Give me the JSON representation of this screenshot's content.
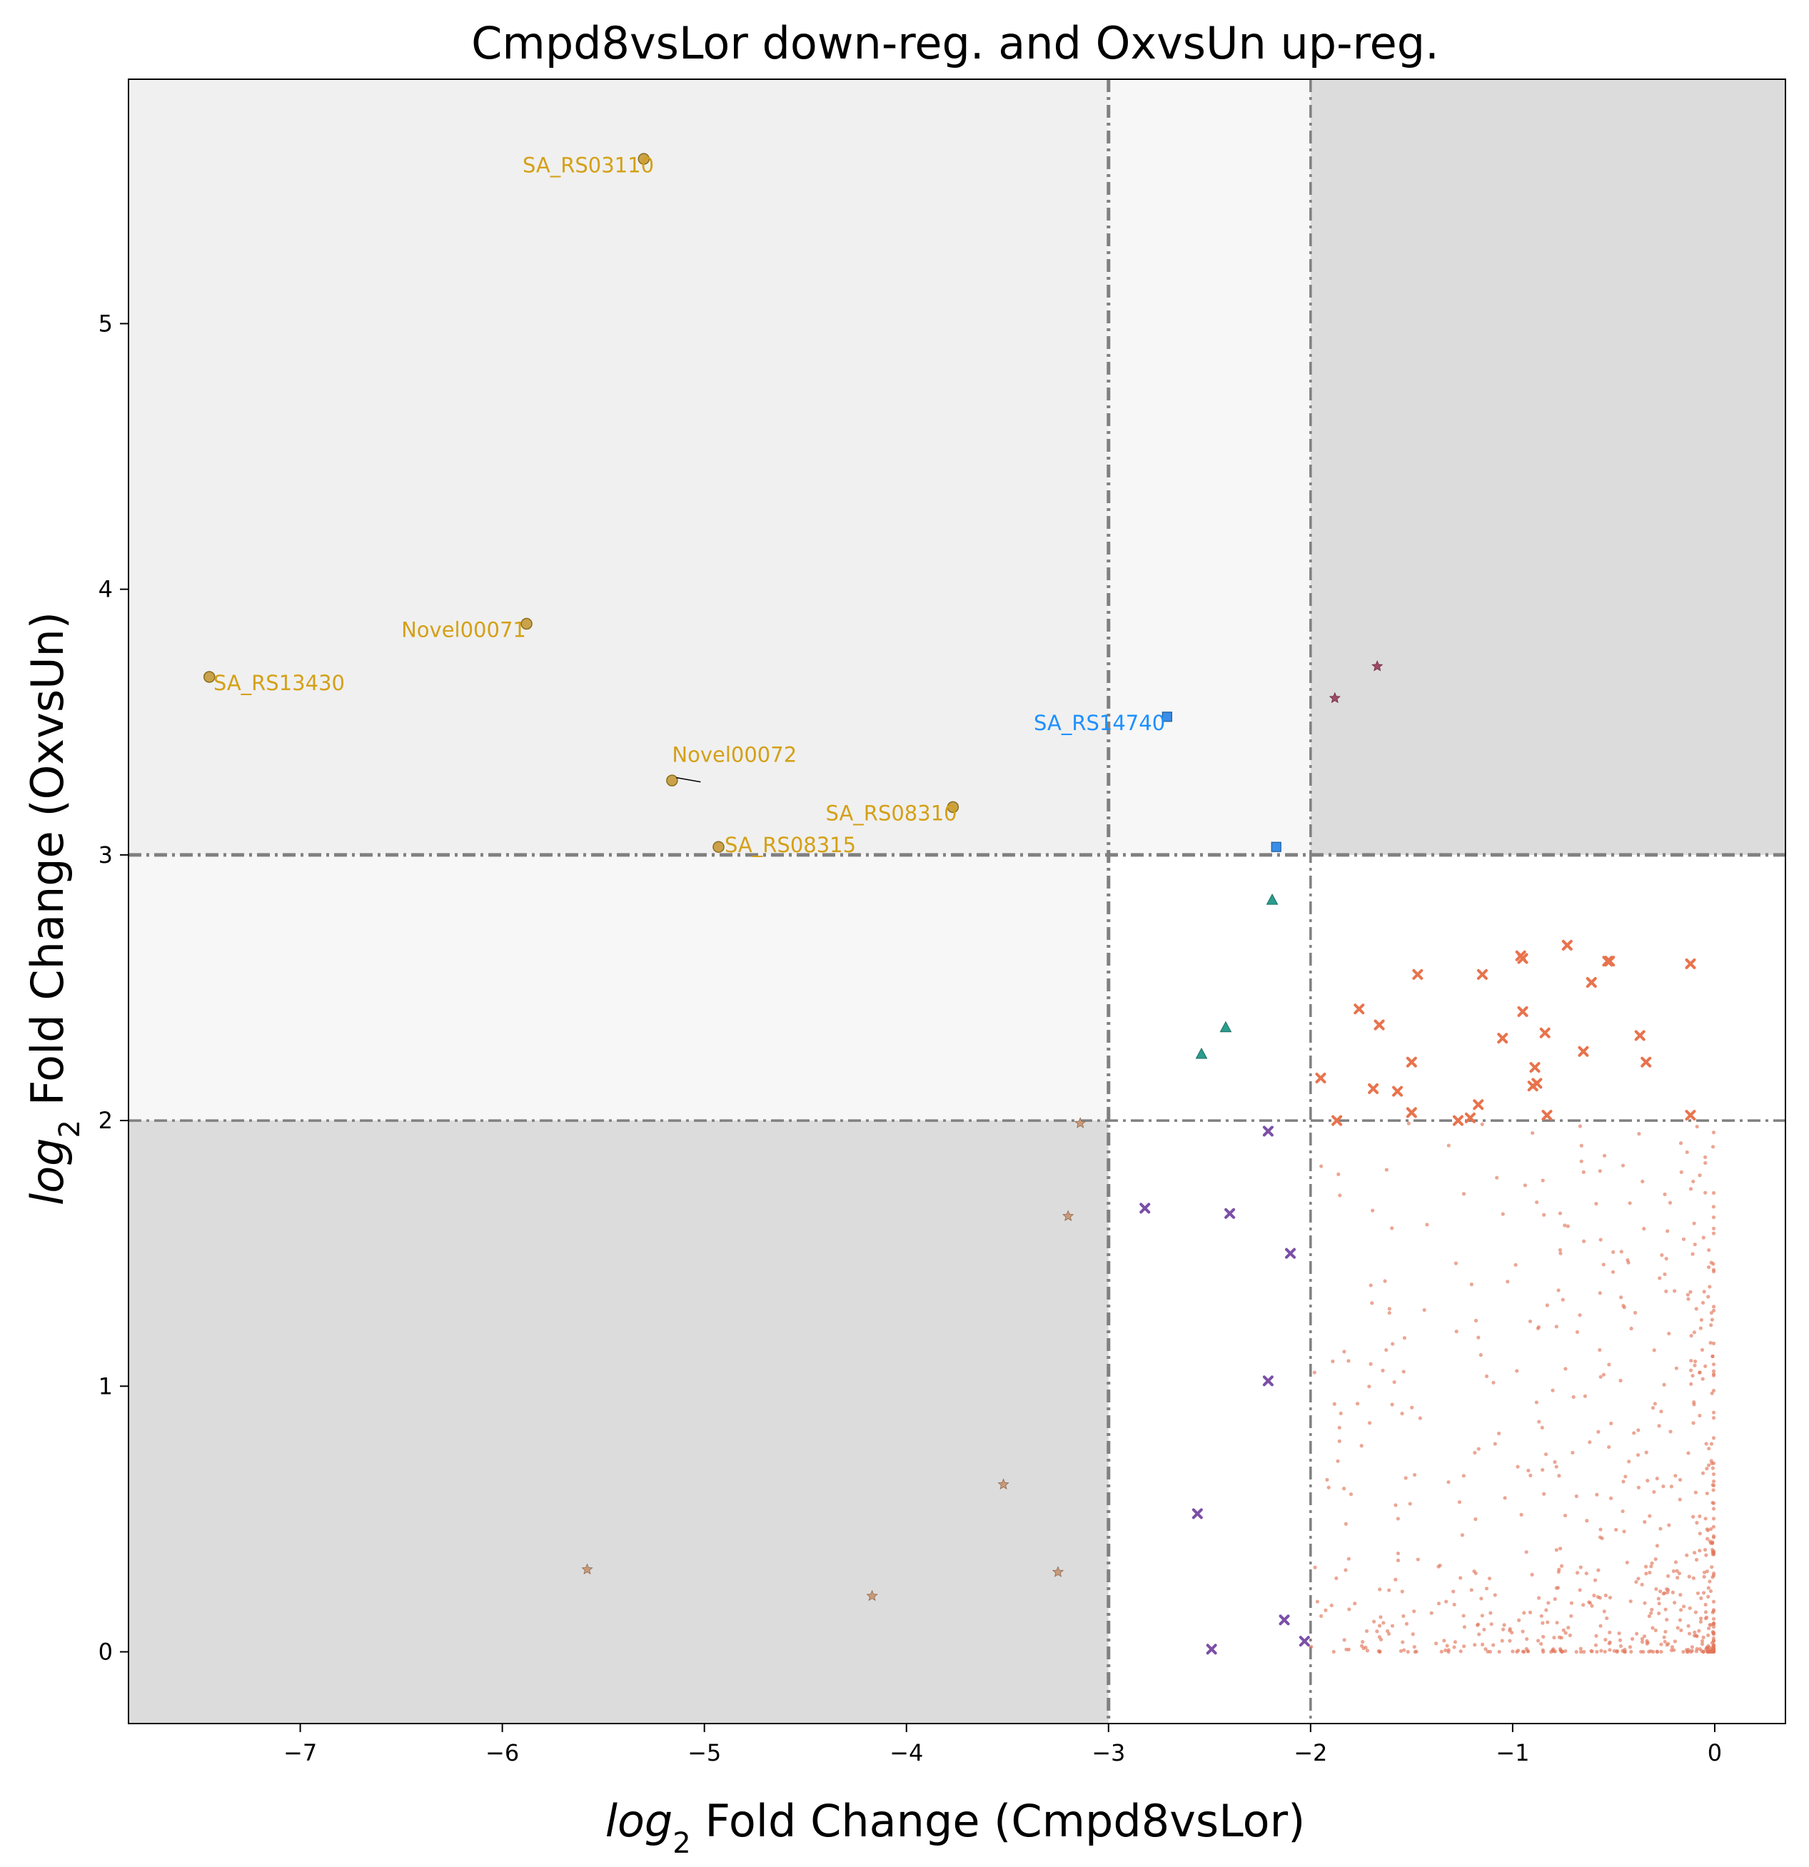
{
  "chart_data": {
    "type": "scatter",
    "title": "Cmpd8vsLor down-reg. and OxvsUn up-reg.",
    "xlabel_italic": "log",
    "xlabel_sub": "2",
    "xlabel_rest": " Fold Change (Cmpd8vsLor)",
    "ylabel_italic": "log",
    "ylabel_sub": "2",
    "ylabel_rest": " Fold Change (OxvsUn)",
    "xlim": [
      -7.85,
      0.35
    ],
    "ylim": [
      -0.27,
      5.92
    ],
    "xticks": [
      -7,
      -6,
      -5,
      -4,
      -3,
      -2,
      -1,
      0
    ],
    "yticks": [
      0,
      1,
      2,
      3,
      4,
      5
    ],
    "grid": false,
    "thresholds": {
      "x": [
        -3,
        -2
      ],
      "y": [
        2,
        3
      ]
    },
    "regions": [
      {
        "x": [
          -7.85,
          -3
        ],
        "y": [
          3,
          5.92
        ],
        "color": "#f0f0f0"
      },
      {
        "x": [
          -3,
          -2
        ],
        "y": [
          3,
          5.92
        ],
        "color": "#f7f7f7"
      },
      {
        "x": [
          -7.85,
          -3
        ],
        "y": [
          2,
          3
        ],
        "color": "#f7f7f7"
      },
      {
        "x": [
          -2,
          0.35
        ],
        "y": [
          3,
          5.92
        ],
        "color": "#dcdcdc"
      },
      {
        "x": [
          -7.85,
          -3
        ],
        "y": [
          -0.27,
          2
        ],
        "color": "#dcdcdc"
      }
    ],
    "series": [
      {
        "marker": "circle",
        "color": "#c9a24a",
        "edge": "#8a6d1f",
        "points": [
          [
            -5.3,
            5.62
          ],
          [
            -5.88,
            3.87
          ],
          [
            -7.45,
            3.67
          ],
          [
            -5.16,
            3.28
          ],
          [
            -3.77,
            3.18
          ],
          [
            -4.93,
            3.03
          ]
        ]
      },
      {
        "marker": "square",
        "color": "#3a8ee6",
        "edge": "#1c5aa0",
        "points": [
          [
            -2.71,
            3.52
          ],
          [
            -2.17,
            3.03
          ]
        ]
      },
      {
        "marker": "star",
        "color": "#9e4a63",
        "edge": "#6e2a43",
        "points": [
          [
            -1.88,
            3.59
          ],
          [
            -1.67,
            3.71
          ]
        ]
      },
      {
        "marker": "triangle",
        "color": "#2a9d8f",
        "edge": "#1b6b61",
        "points": [
          [
            -2.19,
            2.83
          ],
          [
            -2.42,
            2.35
          ],
          [
            -2.54,
            2.25
          ]
        ]
      },
      {
        "marker": "x",
        "color": "#e8734d",
        "edge": "#b04a28",
        "points": [
          [
            -0.73,
            2.66
          ],
          [
            -0.96,
            2.62
          ],
          [
            -0.95,
            2.61
          ],
          [
            -0.53,
            2.6
          ],
          [
            -0.52,
            2.6
          ],
          [
            -0.12,
            2.59
          ],
          [
            -1.47,
            2.55
          ],
          [
            -1.15,
            2.55
          ],
          [
            -0.61,
            2.52
          ],
          [
            -0.95,
            2.41
          ],
          [
            -1.76,
            2.42
          ],
          [
            -1.66,
            2.36
          ],
          [
            -0.84,
            2.33
          ],
          [
            -0.37,
            2.32
          ],
          [
            -1.05,
            2.31
          ],
          [
            -0.65,
            2.26
          ],
          [
            -1.5,
            2.22
          ],
          [
            -0.34,
            2.22
          ],
          [
            -0.89,
            2.2
          ],
          [
            -1.95,
            2.16
          ],
          [
            -0.88,
            2.14
          ],
          [
            -0.9,
            2.13
          ],
          [
            -1.69,
            2.12
          ],
          [
            -1.57,
            2.11
          ],
          [
            -1.17,
            2.06
          ],
          [
            -1.5,
            2.03
          ],
          [
            -0.83,
            2.02
          ],
          [
            -0.12,
            2.02
          ],
          [
            -1.87,
            2.0
          ],
          [
            -1.27,
            2.0
          ],
          [
            -1.21,
            2.01
          ]
        ]
      },
      {
        "marker": "x",
        "color": "#7b4fa8",
        "edge": "#4d2b74",
        "points": [
          [
            -2.21,
            1.96
          ],
          [
            -2.82,
            1.67
          ],
          [
            -2.4,
            1.65
          ],
          [
            -2.1,
            1.5
          ],
          [
            -2.21,
            1.02
          ],
          [
            -2.56,
            0.52
          ],
          [
            -2.13,
            0.12
          ],
          [
            -2.03,
            0.04
          ],
          [
            -2.49,
            0.01
          ]
        ]
      },
      {
        "marker": "star",
        "color": "#c99a7a",
        "edge": "#8f6a4f",
        "points": [
          [
            -3.14,
            1.99
          ],
          [
            -3.2,
            1.64
          ],
          [
            -3.52,
            0.63
          ],
          [
            -5.58,
            0.31
          ],
          [
            -3.25,
            0.3
          ],
          [
            -4.17,
            0.21
          ]
        ]
      }
    ],
    "annotations": [
      {
        "text": "SA_RS03110",
        "x": -5.9,
        "y": 5.57,
        "point": [
          -5.3,
          5.62
        ],
        "color": "#d4a017"
      },
      {
        "text": "Novel00071",
        "x": -6.5,
        "y": 3.82,
        "point": [
          -5.88,
          3.87
        ],
        "color": "#d4a017"
      },
      {
        "text": "SA_RS13430",
        "x": -7.43,
        "y": 3.62,
        "point": [
          -7.45,
          3.67
        ],
        "color": "#d4a017"
      },
      {
        "text": "Novel00072",
        "x": -5.16,
        "y": 3.35,
        "point": [
          -5.16,
          3.28
        ],
        "color": "#d4a017",
        "leader": true
      },
      {
        "text": "SA_RS08310",
        "x": -4.4,
        "y": 3.13,
        "point": [
          -3.77,
          3.18
        ],
        "color": "#d4a017"
      },
      {
        "text": "SA_RS08315",
        "x": -4.9,
        "y": 3.01,
        "point": [
          -4.93,
          3.03
        ],
        "color": "#d4a017"
      },
      {
        "text": "SA_RS14740",
        "x": -3.37,
        "y": 3.47,
        "point": [
          -2.71,
          3.52
        ],
        "color": "#1e90ff"
      }
    ],
    "background_cloud": {
      "marker": "dot",
      "color": "#e2775a",
      "alpha": 0.65,
      "x_range": [
        -2.0,
        0.0
      ],
      "y_range": [
        0.0,
        2.0
      ],
      "count": 700
    }
  }
}
